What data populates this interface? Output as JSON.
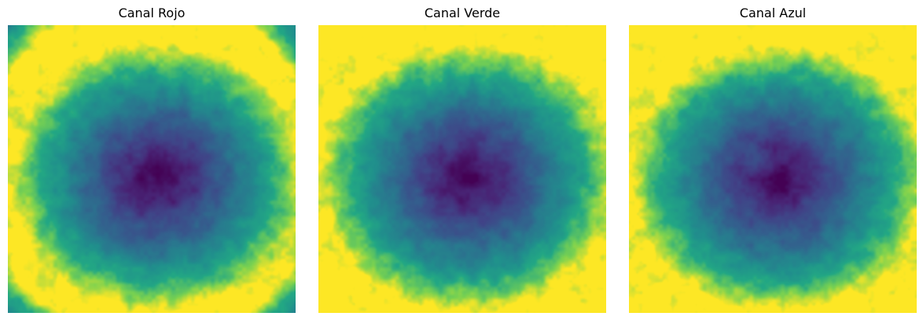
{
  "figure": {
    "colormap": "viridis",
    "panels": [
      {
        "title": "Canal Rojo",
        "dark_corners": true,
        "ring_hole": false
      },
      {
        "title": "Canal Verde",
        "dark_corners": false,
        "ring_hole": false
      },
      {
        "title": "Canal Azul",
        "dark_corners": false,
        "ring_hole": true
      }
    ]
  }
}
